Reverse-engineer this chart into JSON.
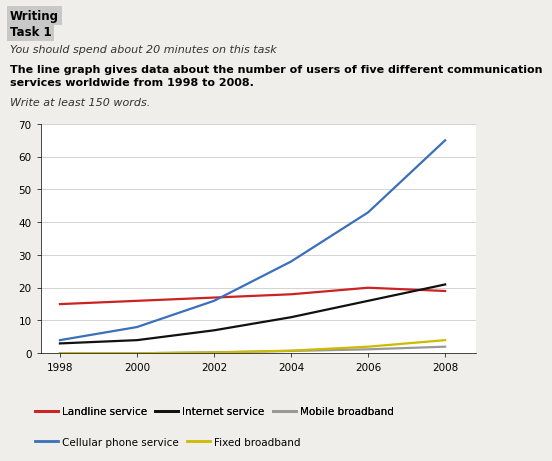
{
  "years": [
    1998,
    2000,
    2002,
    2004,
    2006,
    2008
  ],
  "landline": [
    15,
    16,
    17,
    18,
    20,
    19
  ],
  "internet": [
    3,
    4,
    7,
    11,
    16,
    21
  ],
  "mobile_broadband": [
    0,
    0,
    0.3,
    0.7,
    1.2,
    2
  ],
  "cellular": [
    4,
    8,
    16,
    28,
    43,
    65
  ],
  "fixed_broadband": [
    0,
    0,
    0.2,
    0.8,
    2,
    4
  ],
  "colors": {
    "landline": "#cc2222",
    "internet": "#111111",
    "mobile_broadband": "#999999",
    "cellular": "#3a6fbb",
    "fixed_broadband": "#ccbb00"
  },
  "ylim": [
    0,
    70
  ],
  "yticks": [
    0,
    10,
    20,
    30,
    40,
    50,
    60,
    70
  ],
  "xlim": [
    1997.5,
    2008.8
  ],
  "xticks": [
    1998,
    2000,
    2002,
    2004,
    2006,
    2008
  ],
  "header_text1": "Writing",
  "header_text2": "Task 1",
  "subtext1": "You should spend about 20 minutes on this task",
  "subtext2": "The line graph gives data about the number of users of five different communication\nservices worldwide from 1998 to 2008.",
  "subtext3": "Write at least 150 words.",
  "bg_color": "#f0eeea",
  "legend_row1": [
    "Landline service",
    "Internet service",
    "Mobile broadband"
  ],
  "legend_row2": [
    "Cellular phone service",
    "Fixed broadband"
  ],
  "legend_colors_row1": [
    "#cc2222",
    "#111111",
    "#999999"
  ],
  "legend_colors_row2": [
    "#3a6fbb",
    "#ccbb00"
  ]
}
